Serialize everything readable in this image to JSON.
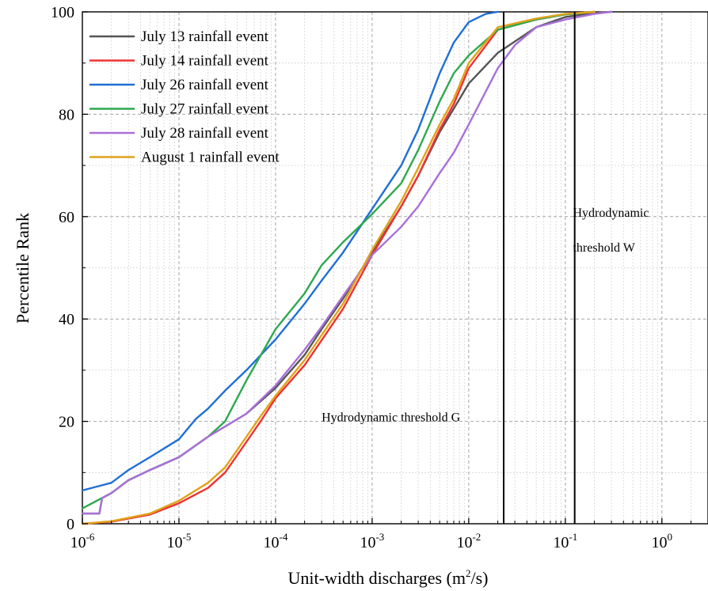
{
  "chart_data": {
    "type": "line",
    "xlabel": "Unit-width discharges (m",
    "xlabel_sup": "2",
    "xlabel_suffix": "/s)",
    "ylabel": "Percentile Rank",
    "xscale": "log",
    "xlim": [
      1e-06,
      3
    ],
    "ylim": [
      0,
      100
    ],
    "grid": true,
    "legend_position": "top-left",
    "x_ticks": [
      {
        "value": 1e-06,
        "base": "10",
        "exp": "-6"
      },
      {
        "value": 1e-05,
        "base": "10",
        "exp": "-5"
      },
      {
        "value": 0.0001,
        "base": "10",
        "exp": "-4"
      },
      {
        "value": 0.001,
        "base": "10",
        "exp": "-3"
      },
      {
        "value": 0.01,
        "base": "10",
        "exp": "-2"
      },
      {
        "value": 0.1,
        "base": "10",
        "exp": "-1"
      },
      {
        "value": 1,
        "base": "10",
        "exp": "0"
      }
    ],
    "y_ticks": [
      0,
      20,
      40,
      60,
      80,
      100
    ],
    "series": [
      {
        "name": "July 13 rainfall event",
        "color": "#555555",
        "x": [
          1e-06,
          1.5e-06,
          1.6e-06,
          2e-06,
          3e-06,
          5e-06,
          1e-05,
          2e-05,
          3e-05,
          5e-05,
          0.0001,
          0.0002,
          0.0003,
          0.0005,
          0.001,
          0.002,
          0.003,
          0.005,
          0.01,
          0.02,
          0.05,
          0.1,
          0.2,
          0.3
        ],
        "y": [
          2,
          2,
          5,
          6,
          8.5,
          10.5,
          13,
          17,
          19,
          21.5,
          26.5,
          33,
          38,
          44,
          53,
          62,
          68,
          76.5,
          86,
          92,
          97,
          99,
          99.8,
          100
        ]
      },
      {
        "name": "July 14 rainfall event",
        "color": "#ee3333",
        "x": [
          1e-06,
          2e-06,
          5e-06,
          1e-05,
          2e-05,
          3e-05,
          5e-05,
          7e-05,
          0.0001,
          0.0002,
          0.0005,
          0.001,
          0.002,
          0.003,
          0.005,
          0.007,
          0.01,
          0.02,
          0.05,
          0.1,
          0.2
        ],
        "y": [
          0,
          0.4,
          1.8,
          4,
          7,
          10,
          16,
          20,
          24.5,
          31,
          42,
          52.5,
          62,
          68,
          77,
          82,
          89,
          96.5,
          98.5,
          99.5,
          100
        ]
      },
      {
        "name": "July 26 rainfall event",
        "color": "#1f6fd6",
        "x": [
          1e-06,
          2e-06,
          3e-06,
          5e-06,
          1e-05,
          1.5e-05,
          2e-05,
          3e-05,
          5e-05,
          0.0001,
          0.0002,
          0.0003,
          0.0005,
          0.001,
          0.002,
          0.003,
          0.005,
          0.007,
          0.01,
          0.015,
          0.02
        ],
        "y": [
          6.5,
          8,
          10.5,
          13,
          16.5,
          20.5,
          22.5,
          26,
          30,
          36,
          43,
          47.5,
          53,
          61.5,
          70,
          77,
          88,
          94,
          98,
          99.6,
          100
        ]
      },
      {
        "name": "July 27 rainfall event",
        "color": "#2ea84f",
        "x": [
          1e-06,
          2e-06,
          3e-06,
          5e-06,
          1e-05,
          2e-05,
          3e-05,
          5e-05,
          0.0001,
          0.0002,
          0.0003,
          0.0005,
          0.001,
          0.002,
          0.003,
          0.005,
          0.007,
          0.01,
          0.02,
          0.05,
          0.1,
          0.2
        ],
        "y": [
          3,
          6,
          8.5,
          10.5,
          13,
          17,
          20,
          28,
          38,
          45,
          50.5,
          55,
          60.5,
          66.5,
          73,
          82.5,
          88,
          91.5,
          96.5,
          98.5,
          99.5,
          100
        ]
      },
      {
        "name": "July 28 rainfall event",
        "color": "#a970d8",
        "x": [
          1e-06,
          1.5e-06,
          1.6e-06,
          2e-06,
          3e-06,
          5e-06,
          1e-05,
          2e-05,
          3e-05,
          5e-05,
          0.0001,
          0.0002,
          0.0003,
          0.0005,
          0.001,
          0.002,
          0.003,
          0.005,
          0.007,
          0.01,
          0.02,
          0.03,
          0.05,
          0.1,
          0.2,
          0.3
        ],
        "y": [
          2,
          2,
          5,
          6,
          8.5,
          10.5,
          13,
          17,
          19,
          21.5,
          27,
          34,
          38.5,
          44.5,
          52.5,
          58,
          62,
          68.5,
          72.5,
          78,
          89,
          93.5,
          97,
          98.5,
          99.6,
          100
        ]
      },
      {
        "name": "August 1 rainfall event",
        "color": "#e0a21b",
        "x": [
          1e-06,
          2e-06,
          5e-06,
          1e-05,
          2e-05,
          3e-05,
          5e-05,
          7e-05,
          0.0001,
          0.0002,
          0.0005,
          0.001,
          0.002,
          0.003,
          0.005,
          0.007,
          0.01,
          0.02,
          0.05,
          0.1,
          0.2
        ],
        "y": [
          0,
          0.5,
          2,
          4.5,
          8,
          11,
          17,
          21,
          25,
          32,
          43,
          53.5,
          63,
          69.5,
          78,
          83,
          90,
          97,
          98.7,
          99.6,
          100
        ]
      }
    ],
    "thresholds": [
      {
        "x": 0.023,
        "label_lines": [
          "Hydrodynamic threshold G"
        ],
        "label_x": 0.0003,
        "label_y": 20
      },
      {
        "x": 0.125,
        "label_lines": [
          "Hydrodynamic",
          "threshold W"
        ],
        "label_x": 0.12,
        "label_y": 60
      }
    ]
  }
}
